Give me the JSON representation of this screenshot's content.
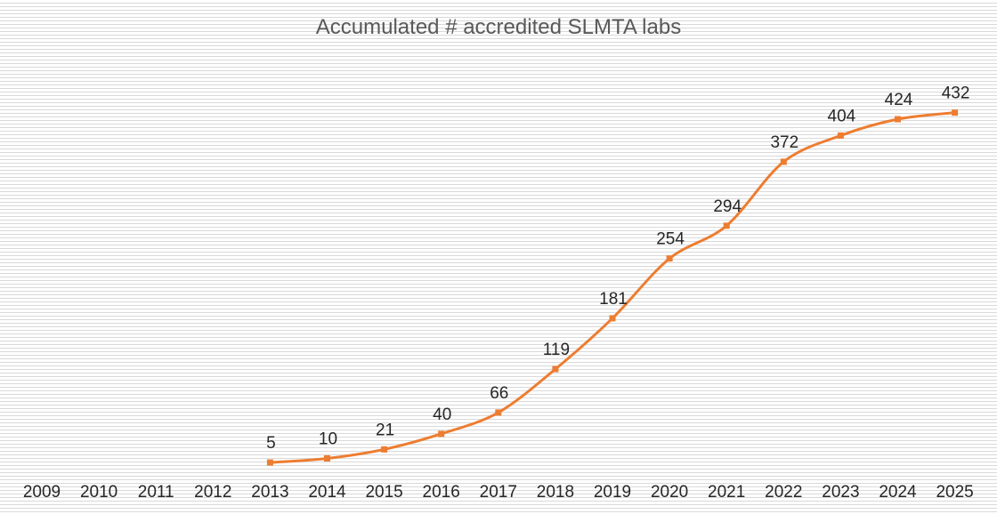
{
  "chart_data": {
    "type": "line",
    "title": "Accumulated # accredited SLMTA labs",
    "categories": [
      "2009",
      "2010",
      "2011",
      "2012",
      "2013",
      "2014",
      "2015",
      "2016",
      "2017",
      "2018",
      "2019",
      "2020",
      "2021",
      "2022",
      "2023",
      "2024",
      "2025"
    ],
    "series": [
      {
        "values": [
          null,
          null,
          null,
          null,
          5,
          10,
          21,
          40,
          66,
          119,
          181,
          254,
          294,
          372,
          404,
          424,
          432
        ],
        "color": "#ED7D31"
      }
    ],
    "data_labels": true,
    "ylim": [
      0,
      450
    ],
    "y_axis_visible": false,
    "grid": "dense horizontal pattern fill",
    "legend": "none"
  }
}
